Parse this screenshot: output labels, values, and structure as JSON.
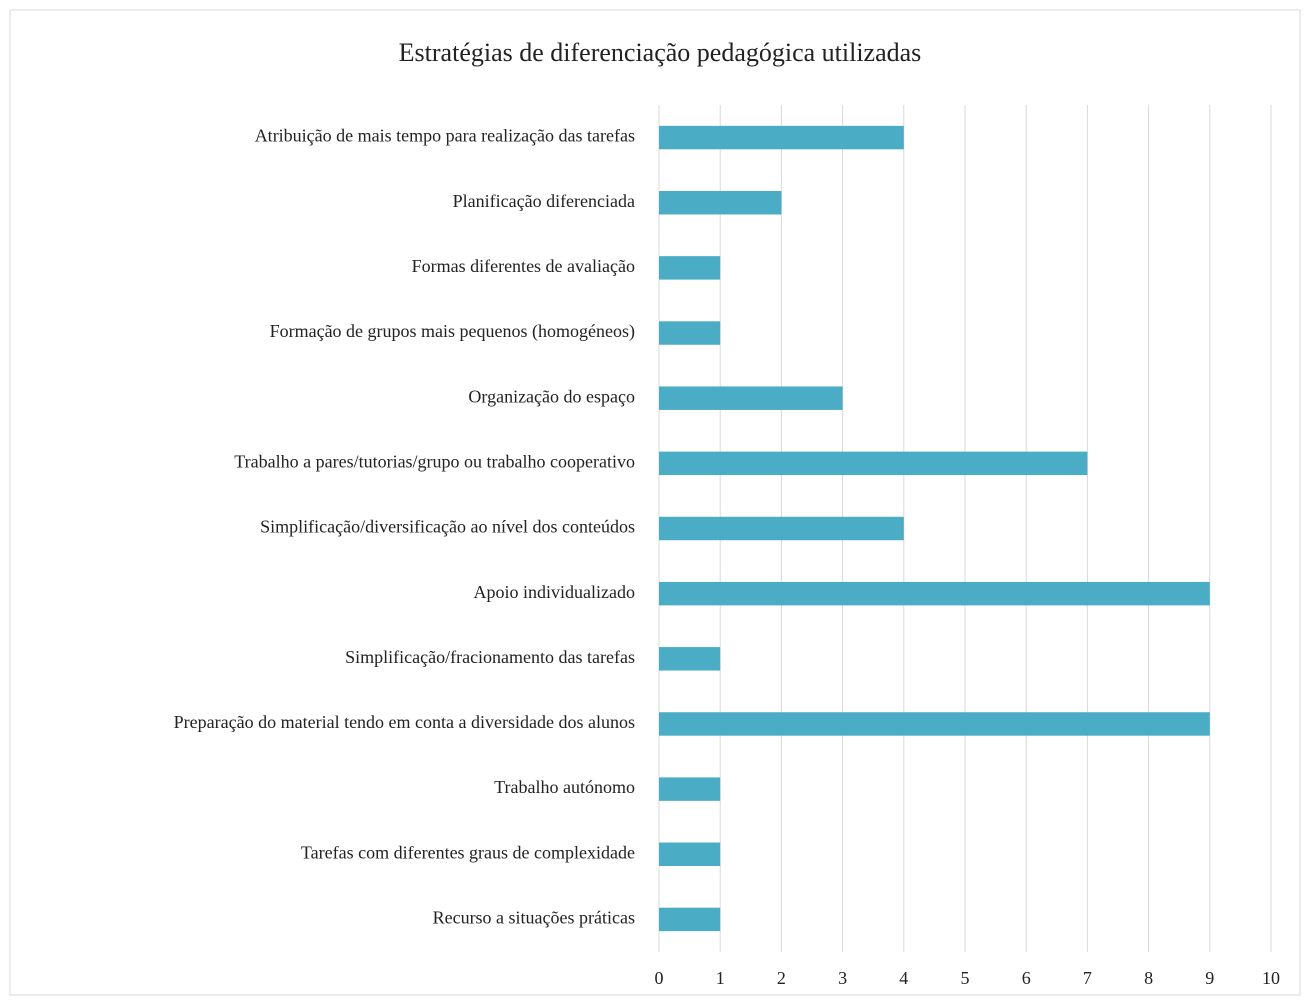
{
  "chart_data": {
    "type": "bar",
    "orientation": "horizontal",
    "title": "Estratégias de diferenciação pedagógica utilizadas",
    "categories": [
      "Atribuição de mais tempo para realização das tarefas",
      "Planificação diferenciada",
      "Formas diferentes de avaliação",
      "Formação de grupos mais pequenos (homogéneos)",
      "Organização do espaço",
      "Trabalho a pares/tutorias/grupo ou trabalho cooperativo",
      "Simplificação/diversificação ao nível dos conteúdos",
      "Apoio individualizado",
      "Simplificação/fracionamento das tarefas",
      "Preparação do material tendo em conta a diversidade dos alunos",
      "Trabalho autónomo",
      "Tarefas com diferentes graus de complexidade",
      "Recurso a situações práticas"
    ],
    "values": [
      4,
      2,
      1,
      1,
      3,
      7,
      4,
      9,
      1,
      9,
      1,
      1,
      1
    ],
    "color": "#4bacc6",
    "xlim": [
      0,
      10
    ],
    "xticks": [
      0,
      1,
      2,
      3,
      4,
      5,
      6,
      7,
      8,
      9,
      10
    ],
    "grid": true
  }
}
